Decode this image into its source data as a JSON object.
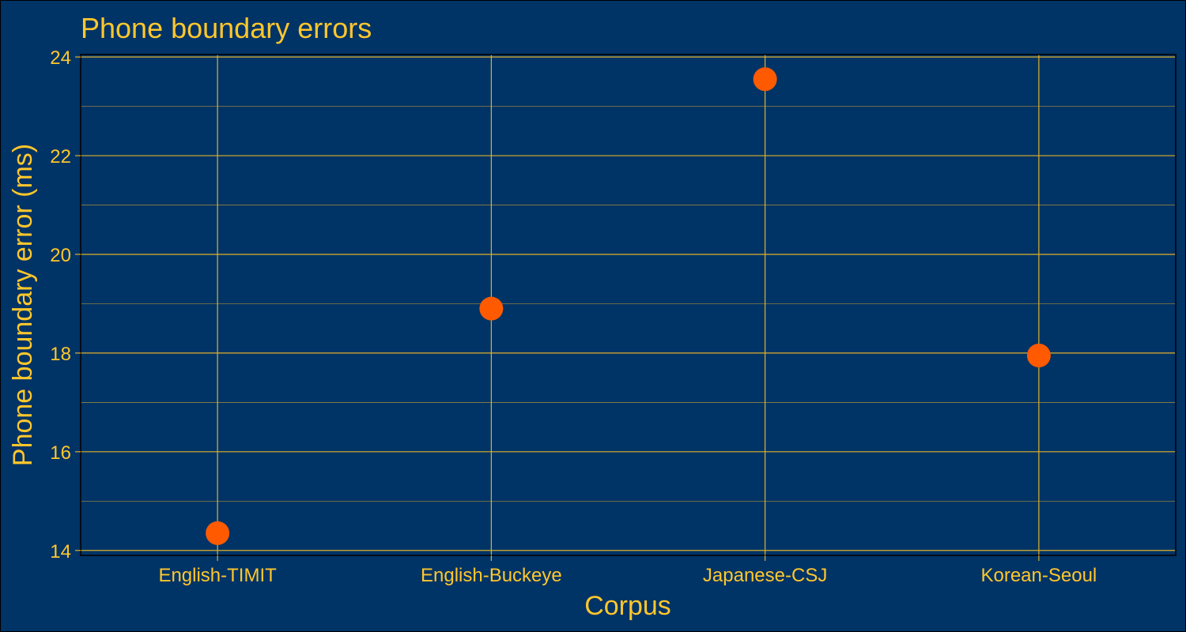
{
  "colors": {
    "background": "#003366",
    "text": "#FFC72C",
    "grid": "#E0B22A",
    "marker": "#FF5A00"
  },
  "chart_data": {
    "type": "scatter",
    "title": "Phone boundary errors",
    "xlabel": "Corpus",
    "ylabel": "Phone boundary error (ms)",
    "categories": [
      "English-TIMIT",
      "English-Buckeye",
      "Japanese-CSJ",
      "Korean-Seoul"
    ],
    "series": [
      {
        "values": [
          14.35,
          18.9,
          23.55,
          17.95
        ]
      }
    ],
    "ylim": [
      13.9,
      24.05
    ],
    "yticks": [
      14,
      16,
      18,
      20,
      22,
      24
    ],
    "grid": true,
    "legend": "none"
  }
}
